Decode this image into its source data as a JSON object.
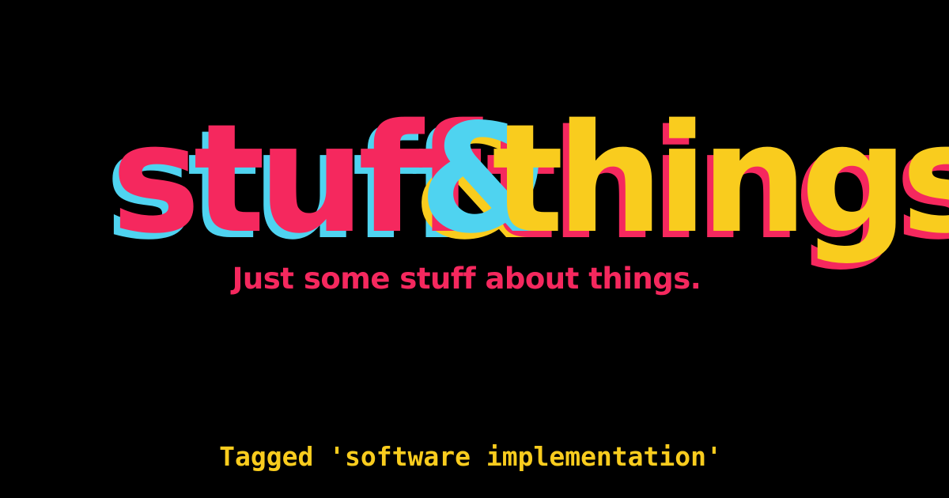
{
  "logo": {
    "word_left": "stuff",
    "ampersand": "&",
    "word_right": "things"
  },
  "tagline": "Just some stuff about things.",
  "tag_text": "Tagged 'software implementation'",
  "colors": {
    "background": "#000000",
    "pink": "#F5285E",
    "cyan": "#4FD3F0",
    "yellow": "#F9CC1E"
  }
}
